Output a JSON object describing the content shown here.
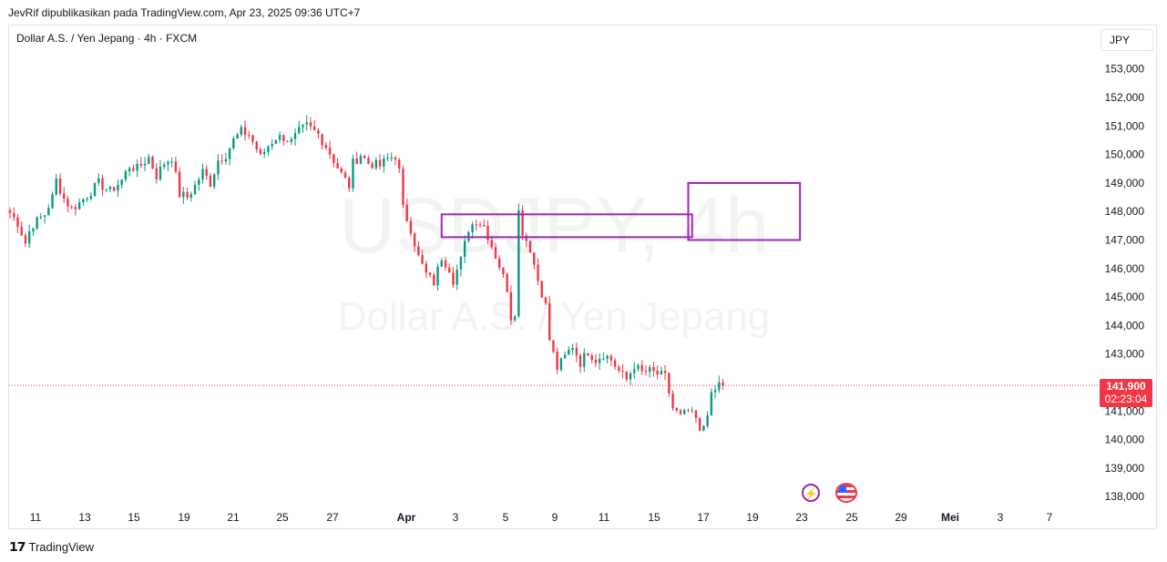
{
  "header": {
    "attribution": "JevRif dipublikasikan pada TradingView.com, Apr 23, 2025 09:36 UTC+7"
  },
  "symbol": {
    "title": "Dollar A.S. / Yen Jepang · 4h · FXCM",
    "watermark_ticker": "USDJPY, 4h",
    "watermark_name": "Dollar A.S. / Yen Jepang"
  },
  "currency_button": "JPY",
  "last_price": {
    "value": "141,900",
    "countdown": "02:23:04"
  },
  "footer": {
    "brand": "TradingView"
  },
  "colors": {
    "up": "#089981",
    "down": "#f23645",
    "zone": "#9c27b0",
    "grid_text": "#131722",
    "price_line": "#f23645"
  },
  "chart_data": {
    "type": "candlestick",
    "title": "Dollar A.S. / Yen Jepang · 4h · FXCM",
    "interval": "4h",
    "y_axis": {
      "position": "right",
      "range": [
        137.6,
        154.2
      ],
      "ticks": [
        {
          "value": 153,
          "label": "153,000"
        },
        {
          "value": 152,
          "label": "152,000"
        },
        {
          "value": 151,
          "label": "151,000"
        },
        {
          "value": 150,
          "label": "150,000"
        },
        {
          "value": 149,
          "label": "149,000"
        },
        {
          "value": 148,
          "label": "148,000"
        },
        {
          "value": 147,
          "label": "147,000"
        },
        {
          "value": 146,
          "label": "146,000"
        },
        {
          "value": 145,
          "label": "145,000"
        },
        {
          "value": 144,
          "label": "144,000"
        },
        {
          "value": 143,
          "label": "143,000"
        },
        {
          "value": 141,
          "label": "141,000"
        },
        {
          "value": 140,
          "label": "140,000"
        },
        {
          "value": 139,
          "label": "139,000"
        },
        {
          "value": 138,
          "label": "138,000"
        }
      ]
    },
    "x_axis": {
      "ticks": [
        "11",
        "13",
        "15",
        "19",
        "21",
        "25",
        "27",
        "Apr",
        "3",
        "5",
        "9",
        "11",
        "15",
        "17",
        "19",
        "23",
        "25",
        "29",
        "Mei",
        "3",
        "7"
      ],
      "bold": [
        "Apr",
        "Mei"
      ]
    },
    "grid": false,
    "last_price": 141.9,
    "path": [
      [
        0,
        147.95
      ],
      [
        2,
        147.6
      ],
      [
        4,
        146.9
      ],
      [
        5,
        147.3
      ],
      [
        6,
        147.55
      ],
      [
        9,
        147.9
      ],
      [
        11,
        148.5
      ],
      [
        12,
        149.1
      ],
      [
        14,
        148.45
      ],
      [
        16,
        148.1
      ],
      [
        18,
        148.3
      ],
      [
        21,
        148.7
      ],
      [
        23,
        149.0
      ],
      [
        26,
        148.7
      ],
      [
        29,
        149.1
      ],
      [
        31,
        149.6
      ],
      [
        33,
        149.5
      ],
      [
        36,
        149.9
      ],
      [
        38,
        149.25
      ],
      [
        40,
        149.7
      ],
      [
        42,
        149.9
      ],
      [
        44,
        148.6
      ],
      [
        46,
        148.5
      ],
      [
        48,
        148.9
      ],
      [
        50,
        149.4
      ],
      [
        52,
        149.0
      ],
      [
        54,
        149.8
      ],
      [
        56,
        150.0
      ],
      [
        58,
        150.5
      ],
      [
        60,
        150.8
      ],
      [
        62,
        150.7
      ],
      [
        64,
        150.2
      ],
      [
        65,
        149.9
      ],
      [
        67,
        150.3
      ],
      [
        69,
        150.6
      ],
      [
        71,
        150.6
      ],
      [
        73,
        150.45
      ],
      [
        75,
        150.8
      ],
      [
        77,
        151.0
      ],
      [
        80,
        150.7
      ],
      [
        82,
        150.3
      ],
      [
        84,
        149.8
      ],
      [
        86,
        149.3
      ],
      [
        88,
        148.9
      ],
      [
        89,
        149.7
      ],
      [
        91,
        150.0
      ],
      [
        93,
        149.7
      ],
      [
        96,
        149.6
      ],
      [
        98,
        149.85
      ],
      [
        100,
        149.95
      ],
      [
        101,
        149.4
      ],
      [
        102,
        148.1
      ],
      [
        104,
        147.4
      ],
      [
        106,
        146.4
      ],
      [
        108,
        145.8
      ],
      [
        110,
        145.5
      ],
      [
        112,
        146.4
      ],
      [
        114,
        146.0
      ],
      [
        115,
        145.6
      ],
      [
        117,
        146.3
      ],
      [
        119,
        147.4
      ],
      [
        121,
        147.7
      ],
      [
        123,
        147.5
      ],
      [
        125,
        146.8
      ],
      [
        127,
        146.1
      ],
      [
        129,
        145.3
      ],
      [
        130,
        144.3
      ],
      [
        131,
        144.5
      ],
      [
        132,
        148.0
      ],
      [
        133,
        147.3
      ],
      [
        135,
        146.7
      ],
      [
        137,
        145.6
      ],
      [
        139,
        144.7
      ],
      [
        140,
        143.5
      ],
      [
        142,
        142.5
      ],
      [
        144,
        142.9
      ],
      [
        146,
        143.3
      ],
      [
        148,
        142.7
      ],
      [
        150,
        143.1
      ],
      [
        152,
        142.8
      ],
      [
        154,
        143.0
      ],
      [
        156,
        142.8
      ],
      [
        158,
        142.4
      ],
      [
        160,
        142.1
      ],
      [
        162,
        142.6
      ],
      [
        164,
        142.35
      ],
      [
        166,
        142.4
      ],
      [
        168,
        142.3
      ],
      [
        170,
        142.2
      ],
      [
        172,
        141.1
      ],
      [
        174,
        140.8
      ],
      [
        176,
        141.0
      ],
      [
        178,
        140.7
      ],
      [
        179,
        140.2
      ],
      [
        180,
        140.5
      ],
      [
        182,
        141.5
      ],
      [
        184,
        141.95
      ],
      [
        185,
        141.9
      ]
    ],
    "zones": [
      {
        "from_bar": 112,
        "to_bar": 177,
        "low": 147.1,
        "high": 147.9
      },
      {
        "from_bar": 176,
        "to_bar": 205,
        "low": 147.0,
        "high": 149.0
      }
    ],
    "events": [
      "lightning",
      "us-flag"
    ]
  }
}
